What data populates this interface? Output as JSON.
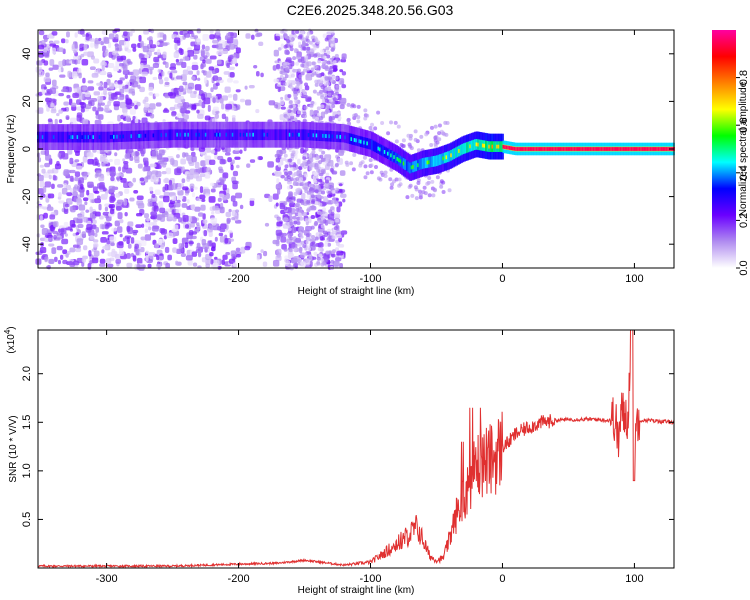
{
  "title": "C2E6.2025.348.20.56.G03",
  "chart_data": [
    {
      "type": "heatmap",
      "name": "spectrogram",
      "xlabel": "Height of straight line (km)",
      "ylabel": "Frequency (Hz)",
      "xlim": [
        -352,
        130
      ],
      "ylim": [
        -50,
        50
      ],
      "xticks": [
        -300,
        -200,
        -100,
        0,
        100
      ],
      "yticks": [
        -40,
        -20,
        0,
        20,
        40
      ],
      "xtick_labels": [
        "-300",
        "-200",
        "-100",
        "0",
        "100"
      ],
      "ytick_labels": [
        "-40",
        "-20",
        "0",
        "20",
        "40"
      ],
      "ridge": {
        "x": [
          -352,
          -300,
          -250,
          -200,
          -150,
          -120,
          -100,
          -80,
          -70,
          -60,
          -50,
          -40,
          -30,
          -20,
          -10,
          0,
          10,
          50,
          100,
          130
        ],
        "y": [
          5,
          5,
          6,
          6,
          6,
          5,
          2,
          -4,
          -8,
          -6,
          -5,
          -3,
          0,
          2,
          1,
          1,
          0,
          0,
          0,
          0
        ]
      },
      "colorbar": {
        "label": "Normalized spectral amplitude",
        "range": [
          0,
          1
        ],
        "ticks": [
          0.0,
          0.2,
          0.4,
          0.6,
          0.8
        ],
        "tick_labels": [
          "0.0",
          "0.2",
          "0.4",
          "0.6",
          "0.8"
        ],
        "colormap": [
          "#ffffff",
          "#b08cf0",
          "#6a00ff",
          "#0000ff",
          "#00ffff",
          "#00ff00",
          "#ffff00",
          "#ff8000",
          "#ff0000",
          "#ff00a0"
        ]
      }
    },
    {
      "type": "line",
      "name": "snr",
      "xlabel": "Height of straight line (km)",
      "ylabel": "SNR (10 * V/V)",
      "ylabel_multiplier": "(x10",
      "ylabel_exponent": "4",
      "xlim": [
        -352,
        130
      ],
      "ylim": [
        0,
        2.45
      ],
      "xticks": [
        -300,
        -200,
        -100,
        0,
        100
      ],
      "yticks": [
        0.5,
        1.0,
        1.5,
        2.0
      ],
      "xtick_labels": [
        "-300",
        "-200",
        "-100",
        "0",
        "100"
      ],
      "ytick_labels": [
        "0.5",
        "1.0",
        "1.5",
        "2.0"
      ],
      "color": "#e03030",
      "series": [
        {
          "name": "SNR",
          "x": [
            -352,
            -300,
            -250,
            -200,
            -170,
            -150,
            -120,
            -100,
            -90,
            -80,
            -70,
            -65,
            -60,
            -55,
            -50,
            -45,
            -40,
            -35,
            -30,
            -25,
            -20,
            -15,
            -10,
            -5,
            0,
            5,
            10,
            20,
            30,
            40,
            50,
            60,
            70,
            80,
            85,
            88,
            90,
            95,
            98,
            100,
            102,
            105,
            110,
            120,
            130
          ],
          "y": [
            0.02,
            0.02,
            0.02,
            0.04,
            0.05,
            0.08,
            0.03,
            0.06,
            0.15,
            0.25,
            0.35,
            0.42,
            0.28,
            0.12,
            0.08,
            0.1,
            0.3,
            0.55,
            0.7,
            0.9,
            1.05,
            1.1,
            1.1,
            1.15,
            1.25,
            1.3,
            1.38,
            1.45,
            1.5,
            1.52,
            1.53,
            1.53,
            1.53,
            1.52,
            1.55,
            1.3,
            1.6,
            1.55,
            2.45,
            1.1,
            1.55,
            1.52,
            1.52,
            1.51,
            1.5
          ]
        }
      ]
    }
  ]
}
